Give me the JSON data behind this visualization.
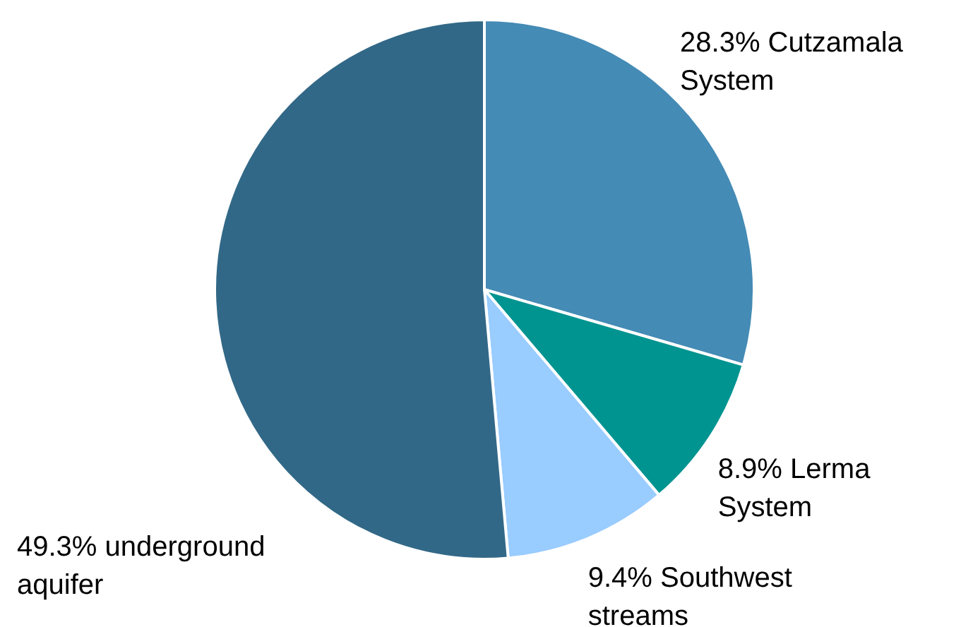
{
  "chart_data": {
    "type": "pie",
    "categories": [
      "Cutzamala System",
      "Lerma System",
      "Southwest streams",
      "underground aquifer"
    ],
    "values": [
      28.3,
      8.9,
      9.4,
      49.3
    ],
    "value_labels": [
      "28.3%",
      "8.9%",
      "9.4%",
      "49.3%"
    ],
    "colors": [
      "#448bb5",
      "#009490",
      "#99ccff",
      "#326887"
    ]
  }
}
